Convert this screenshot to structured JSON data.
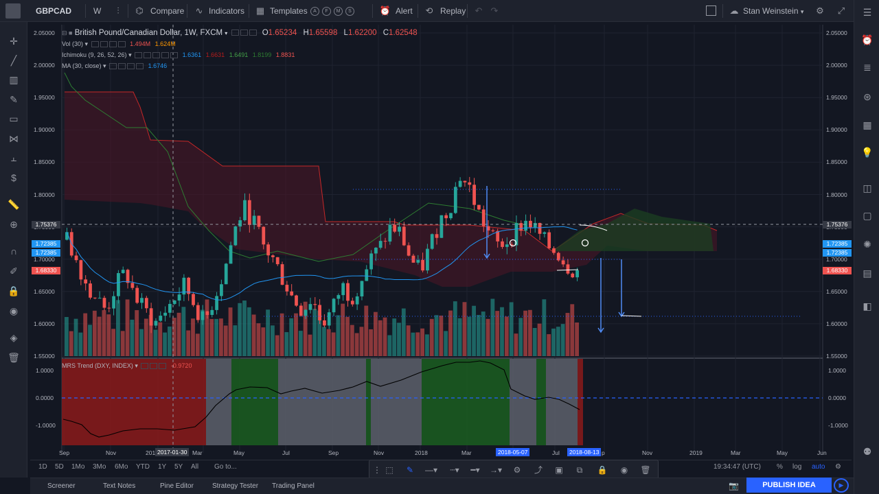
{
  "topbar": {
    "symbol": "GBPCAD",
    "interval": "W",
    "compare": "Compare",
    "indicators": "Indicators",
    "templates": "Templates",
    "template_letters": [
      "A",
      "F",
      "M",
      "S"
    ],
    "alert": "Alert",
    "replay": "Replay",
    "user": "Stan Weinstein"
  },
  "legend": {
    "title": "British Pound/Canadian Dollar, 1W, FXCM",
    "o_label": "O",
    "o": "1.65234",
    "h_label": "H",
    "h": "1.65598",
    "l_label": "L",
    "l": "1.62200",
    "c_label": "C",
    "c": "1.62548",
    "vol_label": "Vol (30)",
    "vol_v1": "1.494M",
    "vol_v2": "1.624M",
    "ichimoku_label": "Ichimoku (9, 26, 52, 26)",
    "ichi_v1": "1.6361",
    "ichi_v2": "1.6631",
    "ichi_v3": "1.6491",
    "ichi_v4": "1.8199",
    "ichi_v5": "1.8831",
    "ma_label": "MA (30, close)",
    "ma_v": "1.6746",
    "mrs_label": "MRS Trend (DXY, INDEX)",
    "mrs_v": "-0.9720"
  },
  "price_axis": {
    "ticks": [
      "2.05000",
      "2.00000",
      "1.95000",
      "1.90000",
      "1.85000",
      "1.80000",
      "1.75000",
      "1.70000",
      "1.65000",
      "1.60000",
      "1.55000"
    ],
    "crosshair_price": "1.75376",
    "tag_1": "1.72385",
    "tag_2": "1.72385",
    "tag_last": "1.68330"
  },
  "mrs_axis": {
    "ticks": [
      "1.0000",
      "0.0000",
      "-1.0000"
    ]
  },
  "time_axis": {
    "labels": [
      "Sep",
      "Nov",
      "201",
      "Mar",
      "May",
      "Jul",
      "Sep",
      "Nov",
      "2018",
      "Mar",
      "Jul",
      "p",
      "Nov",
      "2019",
      "Mar",
      "May",
      "Jun"
    ],
    "crosshair_date": "2017-01-30",
    "highlight_1": "2018-05-07",
    "highlight_2": "2018-08-13"
  },
  "bottom": {
    "ranges": [
      "1D",
      "5D",
      "1Mo",
      "3Mo",
      "6Mo",
      "YTD",
      "1Y",
      "5Y",
      "All"
    ],
    "goto": "Go to...",
    "time": "19:34:47 (UTC)",
    "percent": "%",
    "log": "log",
    "auto": "auto"
  },
  "tabs": [
    "Screener",
    "Text Notes",
    "Pine Editor",
    "Strategy Tester",
    "Trading Panel"
  ],
  "publish": "PUBLISH IDEA",
  "colors": {
    "up": "#26a69a",
    "down": "#ef5350",
    "ma": "#2196f3",
    "accent": "#2962ff"
  },
  "chart_data": {
    "type": "candlestick",
    "title": "British Pound/Canadian Dollar, 1W, FXCM",
    "ylim": [
      1.55,
      2.05
    ],
    "close_series": [
      1.73,
      1.7,
      1.66,
      1.64,
      1.62,
      1.66,
      1.68,
      1.64,
      1.62,
      1.6,
      1.62,
      1.64,
      1.66,
      1.63,
      1.6,
      1.64,
      1.68,
      1.74,
      1.78,
      1.76,
      1.72,
      1.7,
      1.67,
      1.64,
      1.62,
      1.64,
      1.6,
      1.62,
      1.66,
      1.64,
      1.67,
      1.7,
      1.72,
      1.75,
      1.74,
      1.7,
      1.68,
      1.72,
      1.76,
      1.78,
      1.83,
      1.81,
      1.77,
      1.74,
      1.72,
      1.73,
      1.75,
      1.76,
      1.74,
      1.72,
      1.71,
      1.69,
      1.68
    ],
    "mrs_range": [
      -1.0,
      1.0
    ]
  }
}
